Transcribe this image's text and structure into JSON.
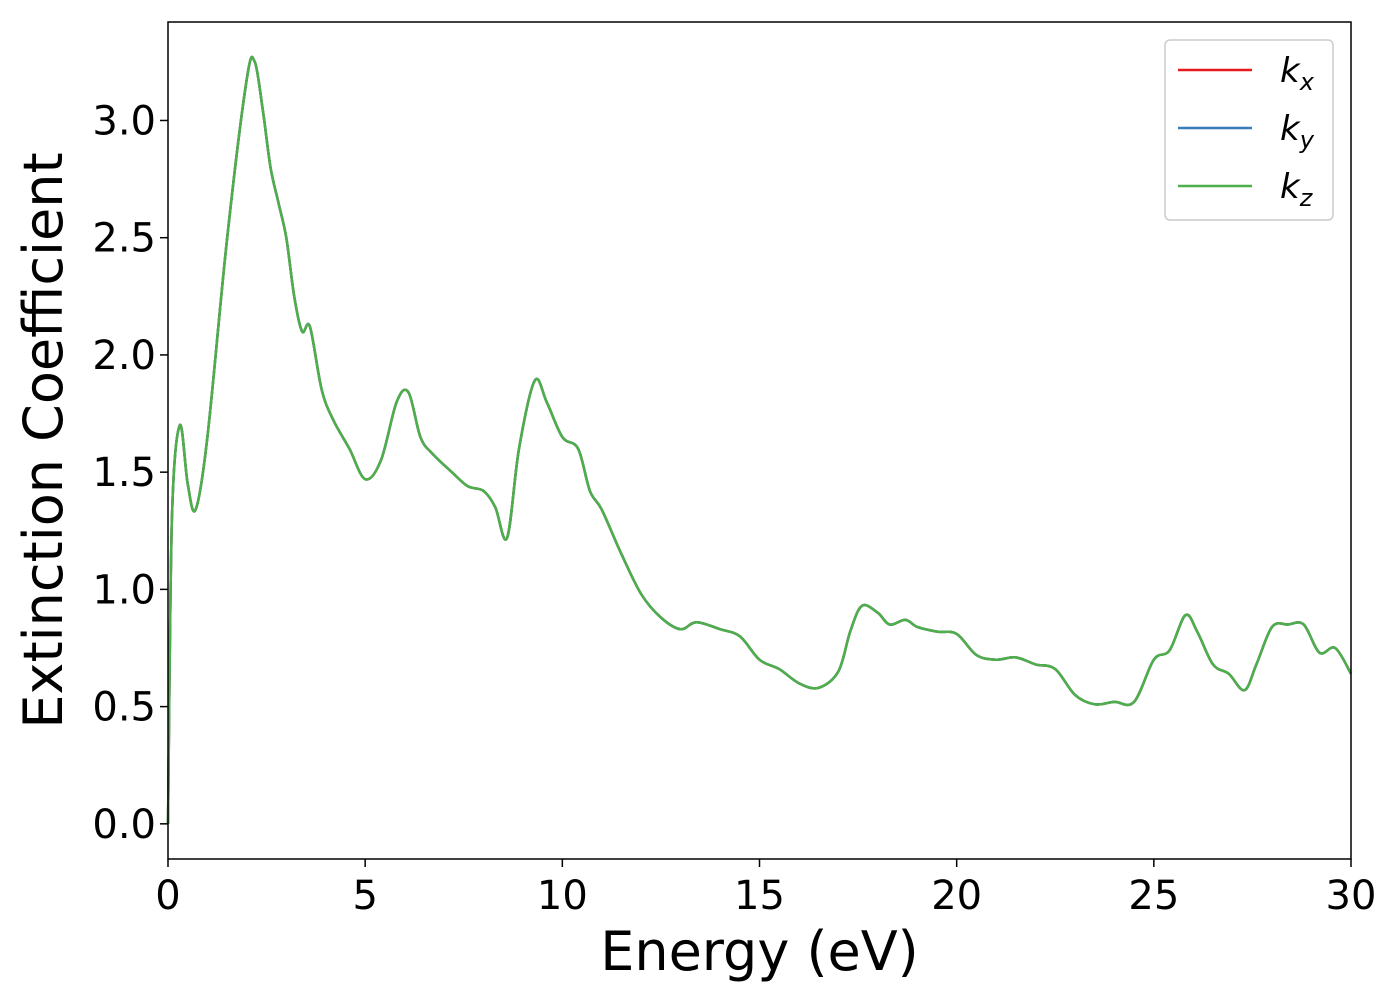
{
  "chart_data": {
    "type": "line",
    "xlabel": "Energy (eV)",
    "ylabel": "Extinction Coefficient",
    "xlim": [
      0,
      30
    ],
    "ylim": [
      -0.15,
      3.42
    ],
    "xticks": [
      0,
      5,
      10,
      15,
      20,
      25,
      30
    ],
    "xtick_labels": [
      "0",
      "5",
      "10",
      "15",
      "20",
      "25",
      "30"
    ],
    "yticks": [
      0.0,
      0.5,
      1.0,
      1.5,
      2.0,
      2.5,
      3.0
    ],
    "ytick_labels": [
      "0.0",
      "0.5",
      "1.0",
      "1.5",
      "2.0",
      "2.5",
      "3.0"
    ],
    "grid": false,
    "legend_position": "top-right",
    "x": [
      0,
      0.1,
      0.3,
      0.5,
      0.7,
      1.0,
      1.5,
      2.0,
      2.2,
      2.4,
      2.6,
      2.8,
      3.0,
      3.2,
      3.4,
      3.6,
      3.9,
      4.2,
      4.6,
      5.0,
      5.4,
      5.8,
      6.1,
      6.4,
      6.7,
      7.2,
      7.6,
      8.0,
      8.3,
      8.6,
      8.9,
      9.3,
      9.6,
      10.0,
      10.4,
      10.7,
      11.0,
      11.5,
      12.0,
      12.5,
      13.0,
      13.4,
      14.0,
      14.5,
      15.0,
      15.5,
      16.0,
      16.5,
      17.0,
      17.3,
      17.6,
      18.0,
      18.3,
      18.7,
      19.0,
      19.5,
      20.0,
      20.5,
      21.0,
      21.5,
      22.0,
      22.5,
      23.0,
      23.5,
      24.0,
      24.5,
      25.0,
      25.4,
      25.8,
      26.1,
      26.5,
      26.9,
      27.3,
      27.6,
      28.0,
      28.4,
      28.8,
      29.2,
      29.6,
      30.0
    ],
    "series": [
      {
        "name": "k_x",
        "display": {
          "base": "k",
          "sub": "x"
        },
        "color": "#e41a1c",
        "values": [
          0.0,
          1.3,
          1.7,
          1.45,
          1.34,
          1.65,
          2.5,
          3.18,
          3.25,
          3.05,
          2.8,
          2.65,
          2.5,
          2.25,
          2.1,
          2.12,
          1.85,
          1.72,
          1.6,
          1.47,
          1.55,
          1.8,
          1.84,
          1.65,
          1.58,
          1.5,
          1.44,
          1.42,
          1.35,
          1.22,
          1.6,
          1.89,
          1.8,
          1.65,
          1.6,
          1.42,
          1.34,
          1.15,
          0.98,
          0.88,
          0.83,
          0.86,
          0.83,
          0.8,
          0.7,
          0.66,
          0.6,
          0.58,
          0.65,
          0.82,
          0.93,
          0.9,
          0.85,
          0.87,
          0.84,
          0.82,
          0.81,
          0.72,
          0.7,
          0.71,
          0.68,
          0.66,
          0.55,
          0.51,
          0.52,
          0.52,
          0.7,
          0.74,
          0.89,
          0.82,
          0.68,
          0.64,
          0.57,
          0.68,
          0.84,
          0.85,
          0.85,
          0.73,
          0.75,
          0.64
        ]
      },
      {
        "name": "k_y",
        "display": {
          "base": "k",
          "sub": "y"
        },
        "color": "#377eb8",
        "values": [
          0.0,
          1.3,
          1.7,
          1.45,
          1.34,
          1.65,
          2.5,
          3.18,
          3.25,
          3.05,
          2.8,
          2.65,
          2.5,
          2.25,
          2.1,
          2.12,
          1.85,
          1.72,
          1.6,
          1.47,
          1.55,
          1.8,
          1.84,
          1.65,
          1.58,
          1.5,
          1.44,
          1.42,
          1.35,
          1.22,
          1.6,
          1.89,
          1.8,
          1.65,
          1.6,
          1.42,
          1.34,
          1.15,
          0.98,
          0.88,
          0.83,
          0.86,
          0.83,
          0.8,
          0.7,
          0.66,
          0.6,
          0.58,
          0.65,
          0.82,
          0.93,
          0.9,
          0.85,
          0.87,
          0.84,
          0.82,
          0.81,
          0.72,
          0.7,
          0.71,
          0.68,
          0.66,
          0.55,
          0.51,
          0.52,
          0.52,
          0.7,
          0.74,
          0.89,
          0.82,
          0.68,
          0.64,
          0.57,
          0.68,
          0.84,
          0.85,
          0.85,
          0.73,
          0.75,
          0.64
        ]
      },
      {
        "name": "k_z",
        "display": {
          "base": "k",
          "sub": "z"
        },
        "color": "#4daf4a",
        "values": [
          0.0,
          1.3,
          1.7,
          1.45,
          1.34,
          1.65,
          2.5,
          3.18,
          3.25,
          3.05,
          2.8,
          2.65,
          2.5,
          2.25,
          2.1,
          2.12,
          1.85,
          1.72,
          1.6,
          1.47,
          1.55,
          1.8,
          1.84,
          1.65,
          1.58,
          1.5,
          1.44,
          1.42,
          1.35,
          1.22,
          1.6,
          1.89,
          1.8,
          1.65,
          1.6,
          1.42,
          1.34,
          1.15,
          0.98,
          0.88,
          0.83,
          0.86,
          0.83,
          0.8,
          0.7,
          0.66,
          0.6,
          0.58,
          0.65,
          0.82,
          0.93,
          0.9,
          0.85,
          0.87,
          0.84,
          0.82,
          0.81,
          0.72,
          0.7,
          0.71,
          0.68,
          0.66,
          0.55,
          0.51,
          0.52,
          0.52,
          0.7,
          0.74,
          0.89,
          0.82,
          0.68,
          0.64,
          0.57,
          0.68,
          0.84,
          0.85,
          0.85,
          0.73,
          0.75,
          0.64
        ]
      }
    ]
  }
}
